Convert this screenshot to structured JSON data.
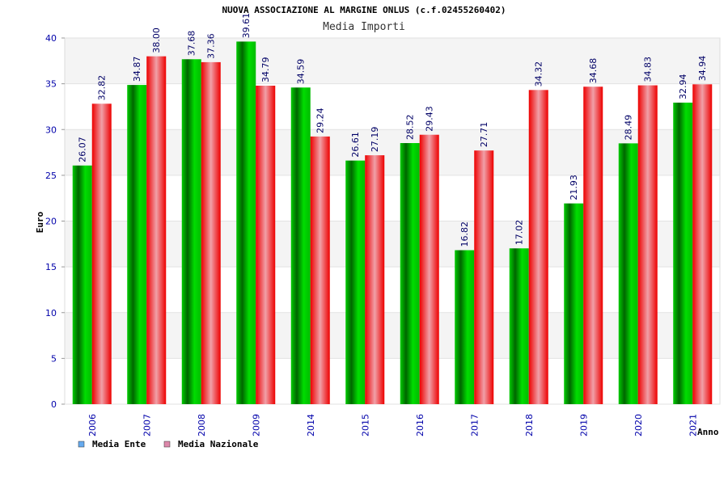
{
  "chart_data": {
    "type": "bar",
    "title": "NUOVA ASSOCIAZIONE AL MARGINE ONLUS (c.f.02455260402)",
    "subtitle": "Media Importi",
    "xlabel": "Anno",
    "ylabel": "Euro",
    "ylim": [
      0,
      40
    ],
    "yticks": [
      0,
      5,
      10,
      15,
      20,
      25,
      30,
      35,
      40
    ],
    "grid": true,
    "legend_position": "bottom-left",
    "categories": [
      "2006",
      "2007",
      "2008",
      "2009",
      "2014",
      "2015",
      "2016",
      "2017",
      "2018",
      "2019",
      "2020",
      "2021"
    ],
    "series": [
      {
        "name": "Media Ente",
        "color": "#00aa00",
        "legend_color": "#66aaee",
        "values": [
          26.07,
          34.87,
          37.68,
          39.61,
          34.59,
          26.61,
          28.52,
          16.82,
          17.02,
          21.93,
          28.49,
          32.94
        ],
        "labels": [
          "26.07",
          "34.87",
          "37.68",
          "39.61",
          "34.59",
          "26.61",
          "28.52",
          "16.82",
          "17.02",
          "21.93",
          "28.49",
          "32.94"
        ]
      },
      {
        "name": "Media Nazionale",
        "color": "#ee0000",
        "legend_color": "#dd88aa",
        "values": [
          32.82,
          38.0,
          37.36,
          34.79,
          29.24,
          27.19,
          29.43,
          27.71,
          34.32,
          34.68,
          34.83,
          34.94
        ],
        "labels": [
          "32.82",
          "38.00",
          "37.36",
          "34.79",
          "29.24",
          "27.19",
          "29.43",
          "27.71",
          "34.32",
          "34.68",
          "34.83",
          "34.94"
        ]
      }
    ]
  }
}
